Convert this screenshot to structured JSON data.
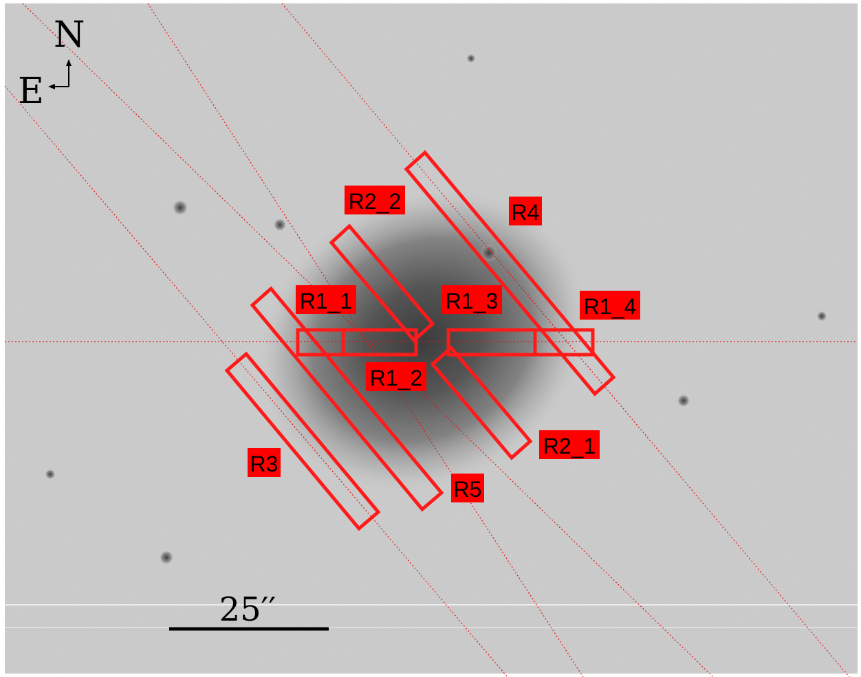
{
  "compass": {
    "north": "N",
    "east": "E"
  },
  "scale_bar": {
    "label": "25′′"
  },
  "colors": {
    "region": "#ff1a1a",
    "label_bg": "#ff0000",
    "sky": "#cfcfcf",
    "galaxy_core": "#3a3a3a"
  },
  "regions": [
    {
      "name": "R1_1"
    },
    {
      "name": "R1_2"
    },
    {
      "name": "R1_3"
    },
    {
      "name": "R1_4"
    },
    {
      "name": "R2_1"
    },
    {
      "name": "R2_2"
    },
    {
      "name": "R3"
    },
    {
      "name": "R4"
    },
    {
      "name": "R5"
    }
  ]
}
